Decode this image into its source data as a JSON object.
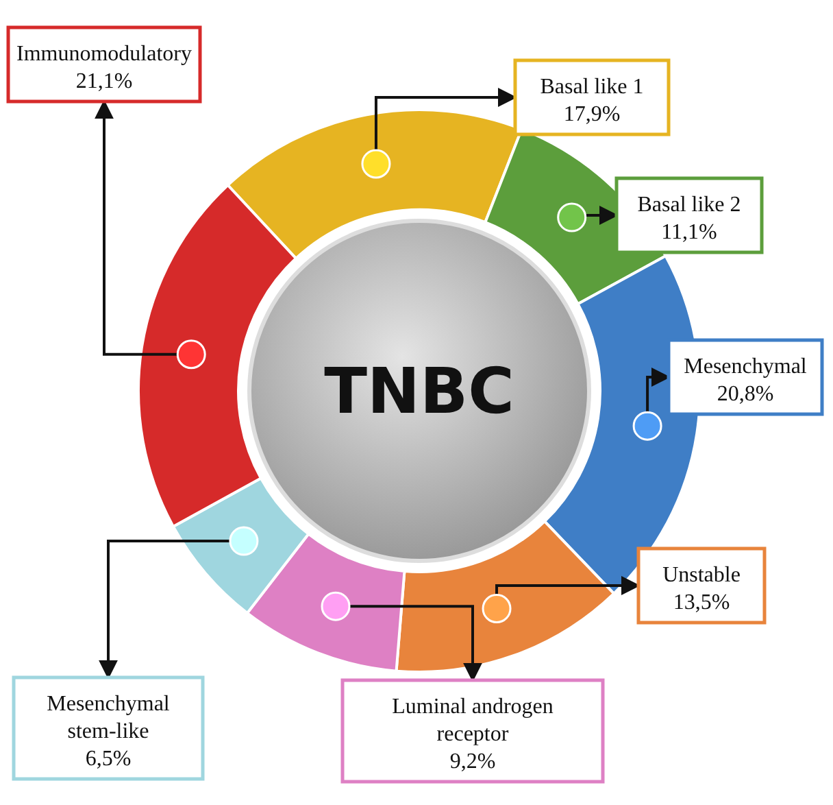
{
  "chart_data": {
    "type": "donut",
    "title": "TNBC",
    "categories": [
      "Basal like 1",
      "Basal like 2",
      "Mesenchymal",
      "Unstable",
      "Luminal androgen receptor",
      "Mesenchymal stem-like",
      "Immunomodulatory"
    ],
    "values": [
      17.9,
      11.1,
      20.8,
      13.5,
      9.2,
      6.5,
      21.1
    ],
    "value_labels": [
      "17,9%",
      "11,1%",
      "20,8%",
      "13,5%",
      "9,2%",
      "6,5%",
      "21,1%"
    ],
    "colors": [
      "#e6b422",
      "#5c9e3c",
      "#3f7ec6",
      "#e8843c",
      "#de80c4",
      "#9fd6df",
      "#d62a2a"
    ]
  }
}
